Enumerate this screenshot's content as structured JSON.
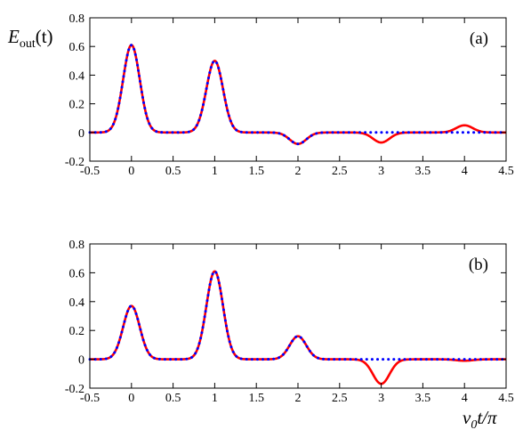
{
  "colors": {
    "series_red": "#ff0000",
    "series_blue": "#0000ff",
    "frame": "#000000"
  },
  "labels": {
    "ylabel_base": "E",
    "ylabel_sub": "out",
    "ylabel_tail": "(t)",
    "xlabel_base": "v",
    "xlabel_sub": "0",
    "xlabel_tail": "t/π"
  },
  "chart_data": [
    {
      "type": "line",
      "panel_label": "(a)",
      "xlim": [
        -0.5,
        4.5
      ],
      "ylim": [
        -0.2,
        0.8
      ],
      "xticks": [
        "-0.5",
        "0",
        "0.5",
        "1",
        "1.5",
        "2",
        "2.5",
        "3",
        "3.5",
        "4",
        "4.5"
      ],
      "yticks": [
        "-0.2",
        "0",
        "0.2",
        "0.4",
        "0.6",
        "0.8"
      ],
      "grid": false,
      "series": [
        {
          "color": "#ff0000",
          "style": "solid",
          "peaks": [
            [
              0,
              0.61
            ],
            [
              1,
              0.5
            ],
            [
              2,
              -0.08
            ],
            [
              3,
              -0.07
            ],
            [
              4,
              0.05
            ]
          ]
        },
        {
          "color": "#0000ff",
          "style": "dotted",
          "peaks": [
            [
              0,
              0.61
            ],
            [
              1,
              0.5
            ],
            [
              2,
              -0.08
            ]
          ]
        }
      ]
    },
    {
      "type": "line",
      "panel_label": "(b)",
      "xlim": [
        -0.5,
        4.5
      ],
      "ylim": [
        -0.2,
        0.8
      ],
      "xticks": [
        "-0.5",
        "0",
        "0.5",
        "1",
        "1.5",
        "2",
        "2.5",
        "3",
        "3.5",
        "4",
        "4.5"
      ],
      "yticks": [
        "-0.2",
        "0",
        "0.2",
        "0.4",
        "0.6",
        "0.8"
      ],
      "grid": false,
      "series": [
        {
          "color": "#ff0000",
          "style": "solid",
          "peaks": [
            [
              0,
              0.37
            ],
            [
              1,
              0.61
            ],
            [
              2,
              0.16
            ],
            [
              3,
              -0.17
            ],
            [
              4,
              -0.01
            ]
          ]
        },
        {
          "color": "#0000ff",
          "style": "dotted",
          "peaks": [
            [
              0,
              0.37
            ],
            [
              1,
              0.61
            ],
            [
              2,
              0.16
            ]
          ]
        }
      ]
    }
  ]
}
